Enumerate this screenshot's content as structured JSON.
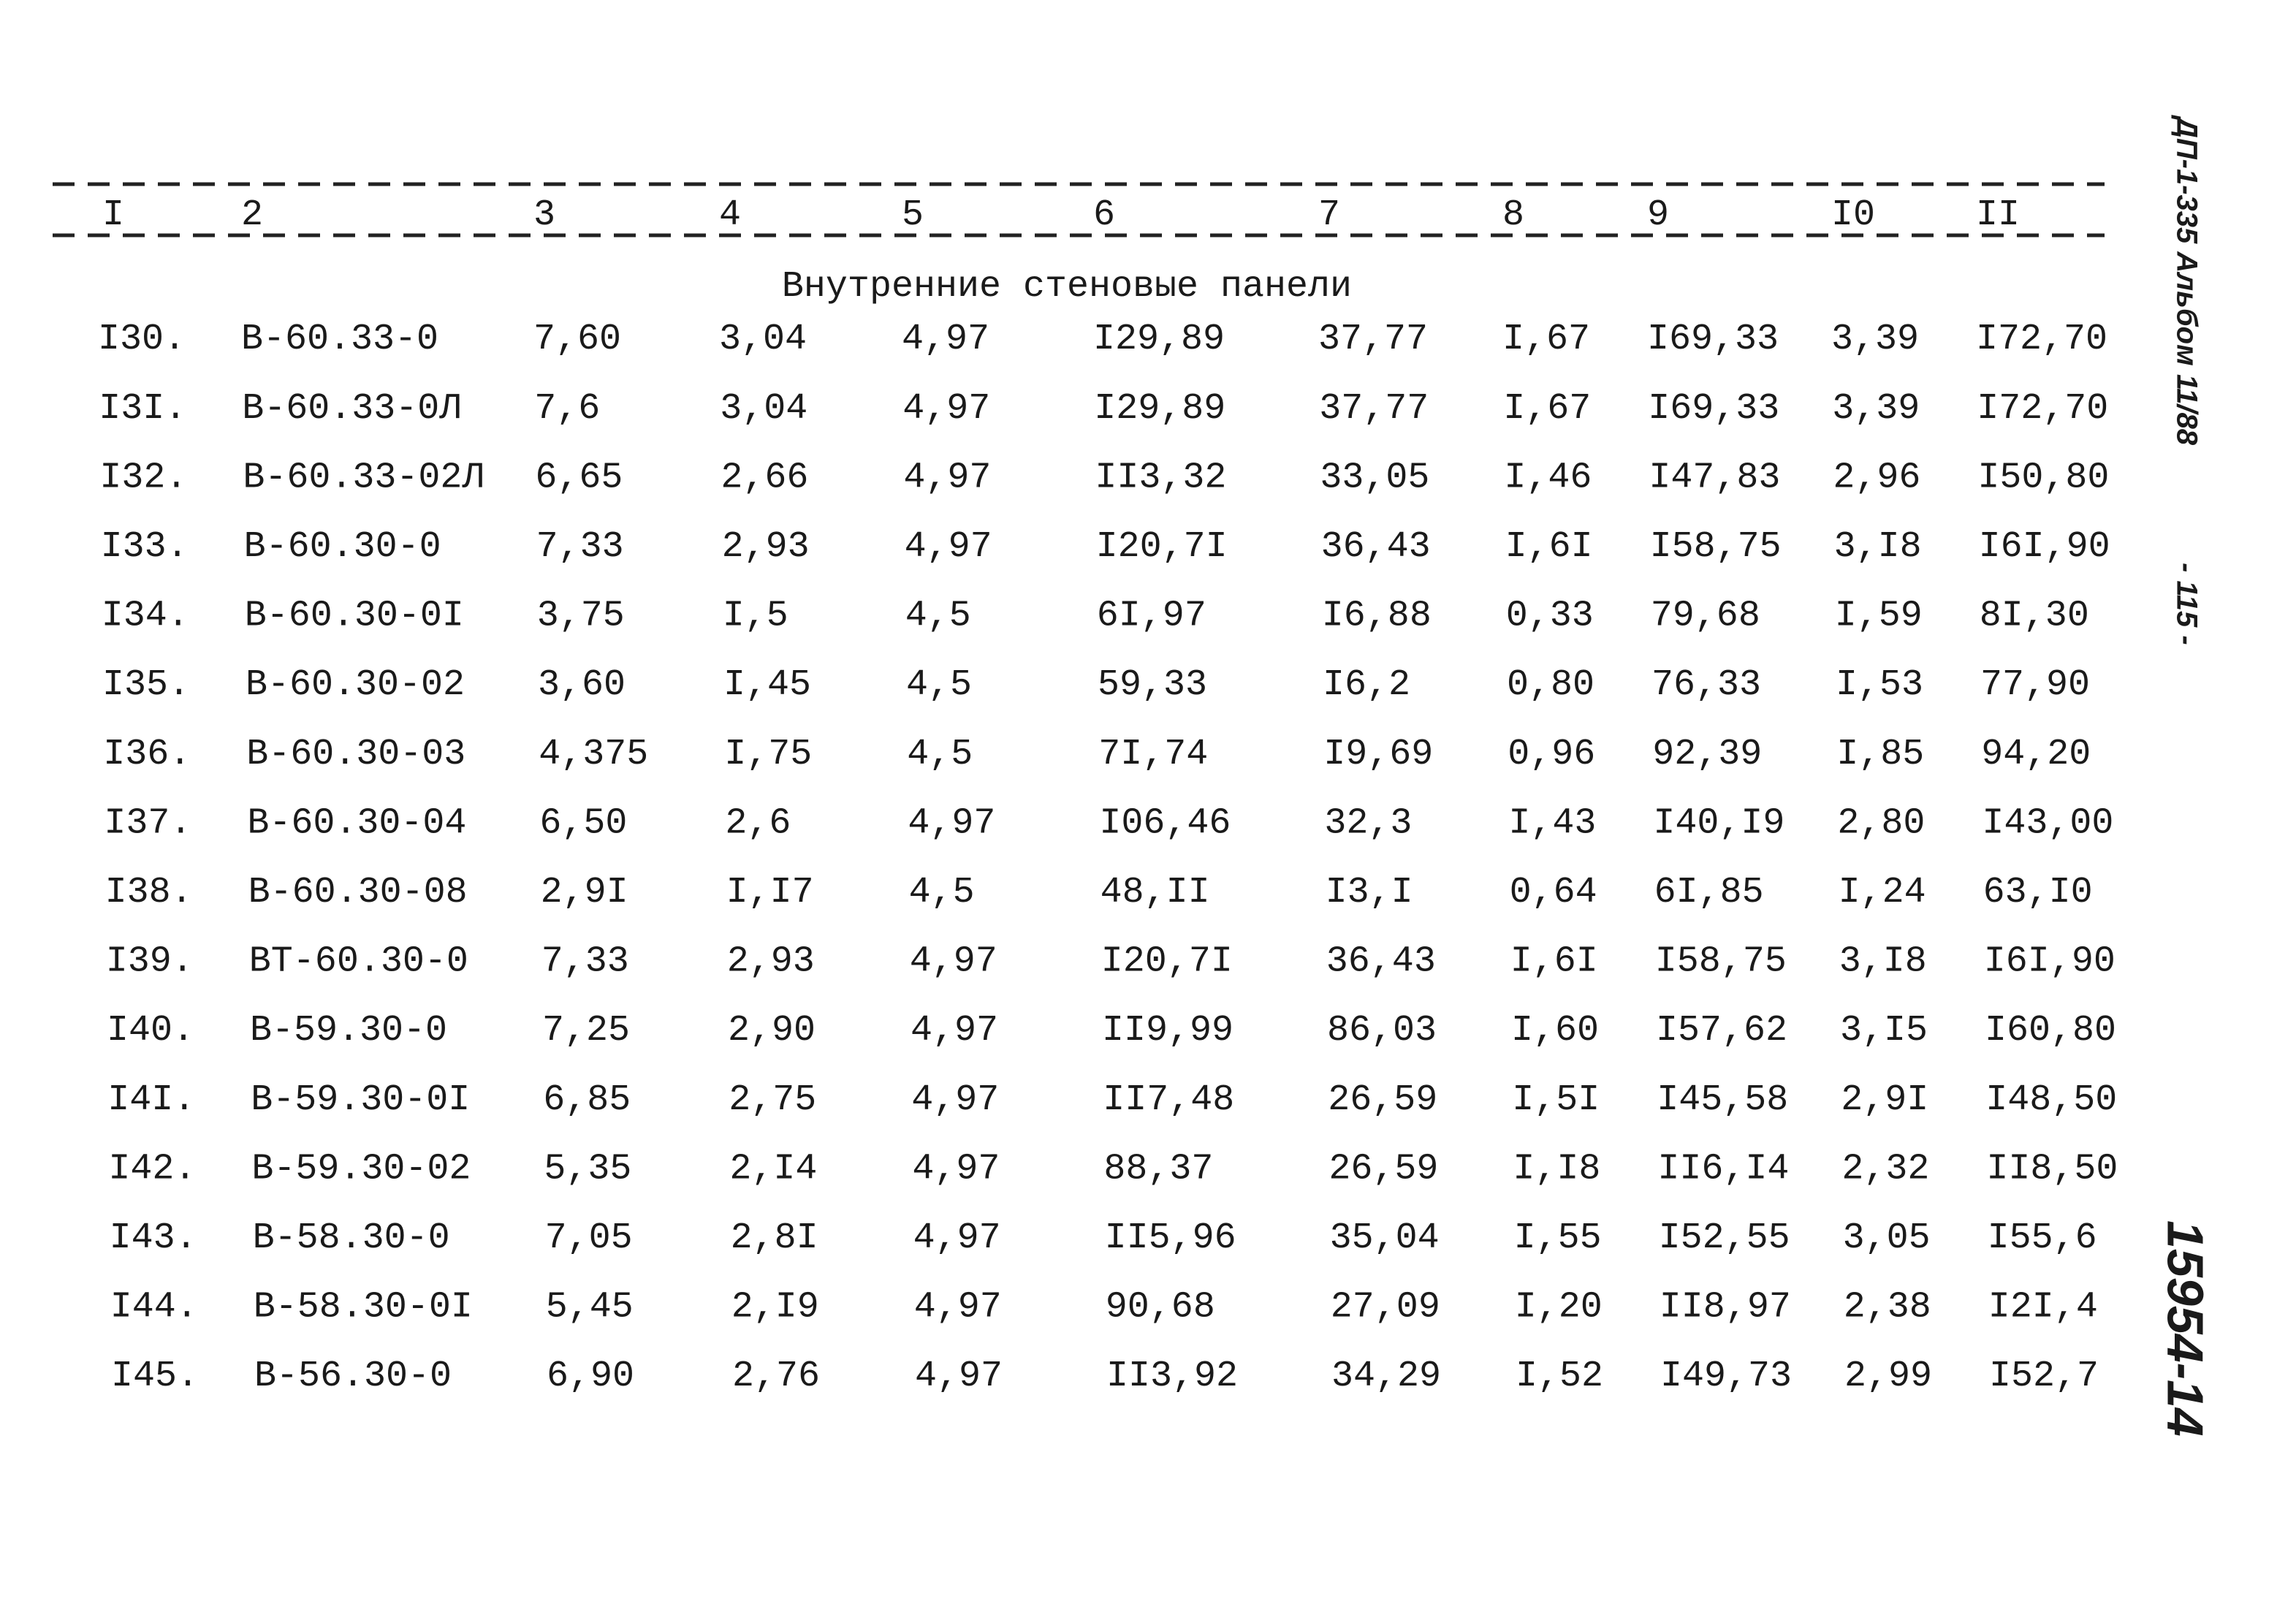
{
  "side_notes": {
    "document_code": "ДП-1-335 Альбом 11/88",
    "page_number": "- 115 -",
    "inventory_number": "15954-14"
  },
  "table": {
    "columns": [
      "I",
      "2",
      "3",
      "4",
      "5",
      "6",
      "7",
      "8",
      "9",
      "I0",
      "II"
    ],
    "section_title": "Внутренние стеновые панели",
    "rows": [
      [
        "I30.",
        "В-60.33-0",
        "7,60",
        "3,04",
        "4,97",
        "I29,89",
        "37,77",
        "I,67",
        "I69,33",
        "3,39",
        "I72,70"
      ],
      [
        "I3I.",
        "В-60.33-0Л",
        "7,6",
        "3,04",
        "4,97",
        "I29,89",
        "37,77",
        "I,67",
        "I69,33",
        "3,39",
        "I72,70"
      ],
      [
        "I32.",
        "В-60.33-02Л",
        "6,65",
        "2,66",
        "4,97",
        "II3,32",
        "33,05",
        "I,46",
        "I47,83",
        "2,96",
        "I50,80"
      ],
      [
        "I33.",
        "В-60.30-0",
        "7,33",
        "2,93",
        "4,97",
        "I20,7I",
        "36,43",
        "I,6I",
        "I58,75",
        "3,I8",
        "I6I,90"
      ],
      [
        "I34.",
        "В-60.30-0I",
        "3,75",
        "I,5",
        "4,5",
        "6I,97",
        "I6,88",
        "0,33",
        "79,68",
        "I,59",
        "8I,30"
      ],
      [
        "I35.",
        "В-60.30-02",
        "3,60",
        "I,45",
        "4,5",
        "59,33",
        "I6,2",
        "0,80",
        "76,33",
        "I,53",
        "77,90"
      ],
      [
        "I36.",
        "В-60.30-03",
        "4,375",
        "I,75",
        "4,5",
        "7I,74",
        "I9,69",
        "0,96",
        "92,39",
        "I,85",
        "94,20"
      ],
      [
        "I37.",
        "В-60.30-04",
        "6,50",
        "2,6",
        "4,97",
        "I06,46",
        "32,3",
        "I,43",
        "I40,I9",
        "2,80",
        "I43,00"
      ],
      [
        "I38.",
        "В-60.30-08",
        "2,9I",
        "I,I7",
        "4,5",
        "48,II",
        "I3,I",
        "0,64",
        "6I,85",
        "I,24",
        "63,I0"
      ],
      [
        "I39.",
        "ВТ-60.30-0",
        "7,33",
        "2,93",
        "4,97",
        "I20,7I",
        "36,43",
        "I,6I",
        "I58,75",
        "3,I8",
        "I6I,90"
      ],
      [
        "I40.",
        "В-59.30-0",
        "7,25",
        "2,90",
        "4,97",
        "II9,99",
        "86,03",
        "I,60",
        "I57,62",
        "3,I5",
        "I60,80"
      ],
      [
        "I4I.",
        "В-59.30-0I",
        "6,85",
        "2,75",
        "4,97",
        "II7,48",
        "26,59",
        "I,5I",
        "I45,58",
        "2,9I",
        "I48,50"
      ],
      [
        "I42.",
        "В-59.30-02",
        "5,35",
        "2,I4",
        "4,97",
        "88,37",
        "26,59",
        "I,I8",
        "II6,I4",
        "2,32",
        "II8,50"
      ],
      [
        "I43.",
        "В-58.30-0",
        "7,05",
        "2,8I",
        "4,97",
        "II5,96",
        "35,04",
        "I,55",
        "I52,55",
        "3,05",
        "I55,6"
      ],
      [
        "I44.",
        "В-58.30-0I",
        "5,45",
        "2,I9",
        "4,97",
        "90,68",
        "27,09",
        "I,20",
        "II8,97",
        "2,38",
        "I2I,4"
      ],
      [
        "I45.",
        "В-56.30-0",
        "6,90",
        "2,76",
        "4,97",
        "II3,92",
        "34,29",
        "I,52",
        "I49,73",
        "2,99",
        "I52,7"
      ]
    ]
  }
}
